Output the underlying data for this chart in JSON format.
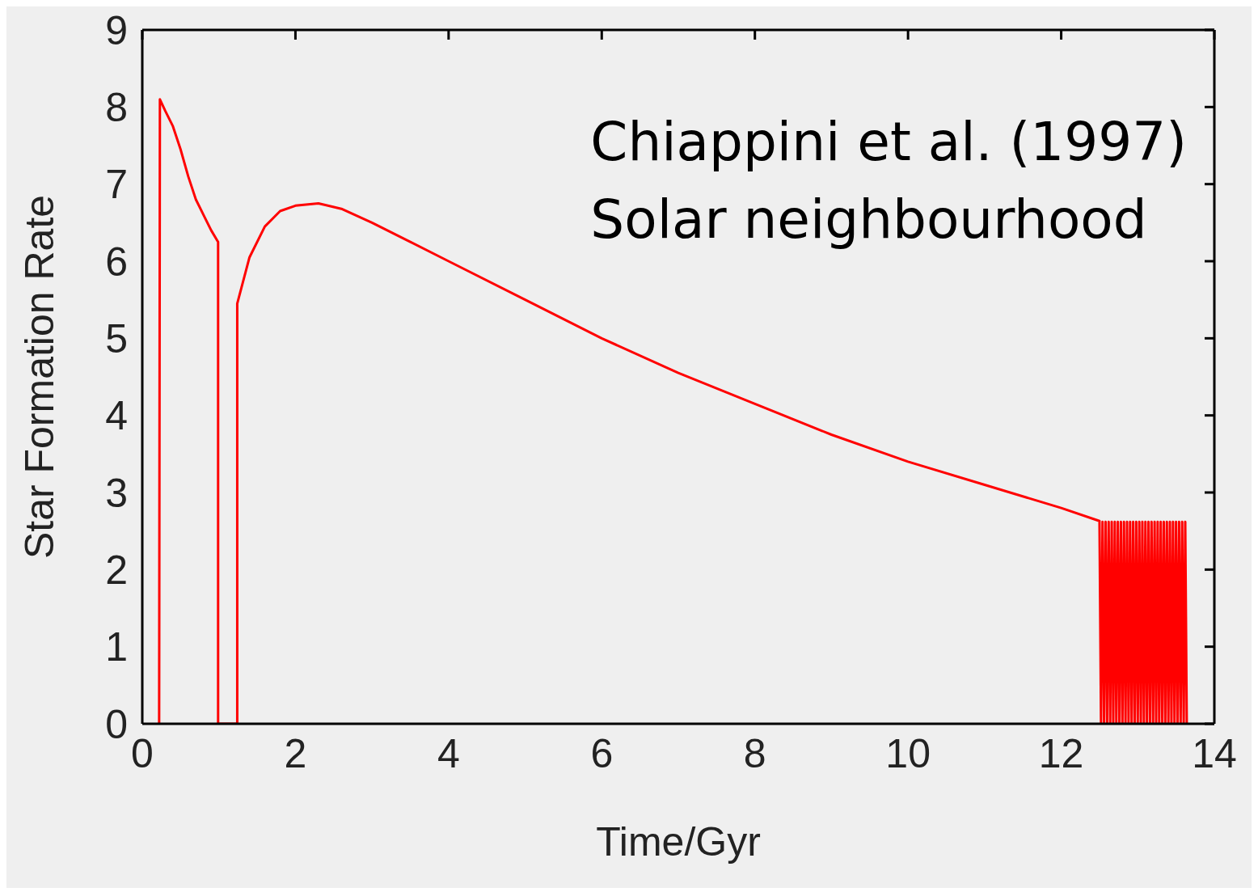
{
  "chart_data": {
    "type": "line",
    "xlabel": "Time/Gyr",
    "ylabel": "Star Formation Rate",
    "annotations": [
      "Chiappini et al. (1997)",
      "Solar neighbourhood"
    ],
    "xlim": [
      0,
      14
    ],
    "ylim": [
      0,
      9
    ],
    "xticks": [
      0,
      2,
      4,
      6,
      8,
      10,
      12,
      14
    ],
    "yticks": [
      0,
      1,
      2,
      3,
      4,
      5,
      6,
      7,
      8,
      9
    ],
    "marker": "none",
    "line_style": "solid",
    "series": [
      {
        "color": "#ff0000",
        "x": [
          0.22,
          0.23,
          0.3,
          0.4,
          0.5,
          0.6,
          0.7,
          0.8,
          0.9,
          0.99,
          0.99,
          1.24,
          1.24,
          1.4,
          1.6,
          1.8,
          2.0,
          2.3,
          2.6,
          3.0,
          3.5,
          4.0,
          5.0,
          6.0,
          7.0,
          8.0,
          9.0,
          10.0,
          11.0,
          12.0,
          12.5,
          12.52,
          12.54,
          12.56,
          12.58,
          12.6,
          12.62,
          12.64,
          12.66,
          12.68,
          12.7,
          12.72,
          12.74,
          12.76,
          12.78,
          12.8,
          12.82,
          12.84,
          12.86,
          12.88,
          12.9,
          12.92,
          12.94,
          12.96,
          12.98,
          13.0,
          13.02,
          13.04,
          13.06,
          13.08,
          13.1,
          13.12,
          13.14,
          13.16,
          13.18,
          13.2,
          13.22,
          13.24,
          13.26,
          13.28,
          13.3,
          13.32,
          13.34,
          13.36,
          13.38,
          13.4,
          13.42,
          13.44,
          13.46,
          13.48,
          13.5,
          13.52,
          13.54,
          13.56,
          13.58,
          13.6,
          13.62,
          13.64
        ],
        "values": [
          0,
          8.1,
          7.95,
          7.75,
          7.45,
          7.1,
          6.8,
          6.6,
          6.4,
          6.25,
          0,
          0,
          5.45,
          6.05,
          6.45,
          6.65,
          6.72,
          6.75,
          6.68,
          6.5,
          6.25,
          6.0,
          5.5,
          5.0,
          4.55,
          4.15,
          3.75,
          3.4,
          3.1,
          2.8,
          2.63,
          0,
          2.62,
          0,
          2.62,
          0,
          2.62,
          0,
          2.62,
          0,
          2.62,
          0,
          2.62,
          0,
          2.62,
          0,
          2.62,
          0,
          2.62,
          0,
          2.62,
          0,
          2.62,
          0,
          2.62,
          0,
          2.62,
          0,
          2.62,
          0,
          2.62,
          0,
          2.62,
          0,
          2.62,
          0,
          2.62,
          0,
          2.62,
          0,
          2.62,
          0,
          2.62,
          0,
          2.62,
          0,
          2.62,
          0,
          2.62,
          0,
          2.62,
          0,
          2.62,
          0,
          2.62,
          0,
          2.62,
          0
        ]
      }
    ]
  }
}
